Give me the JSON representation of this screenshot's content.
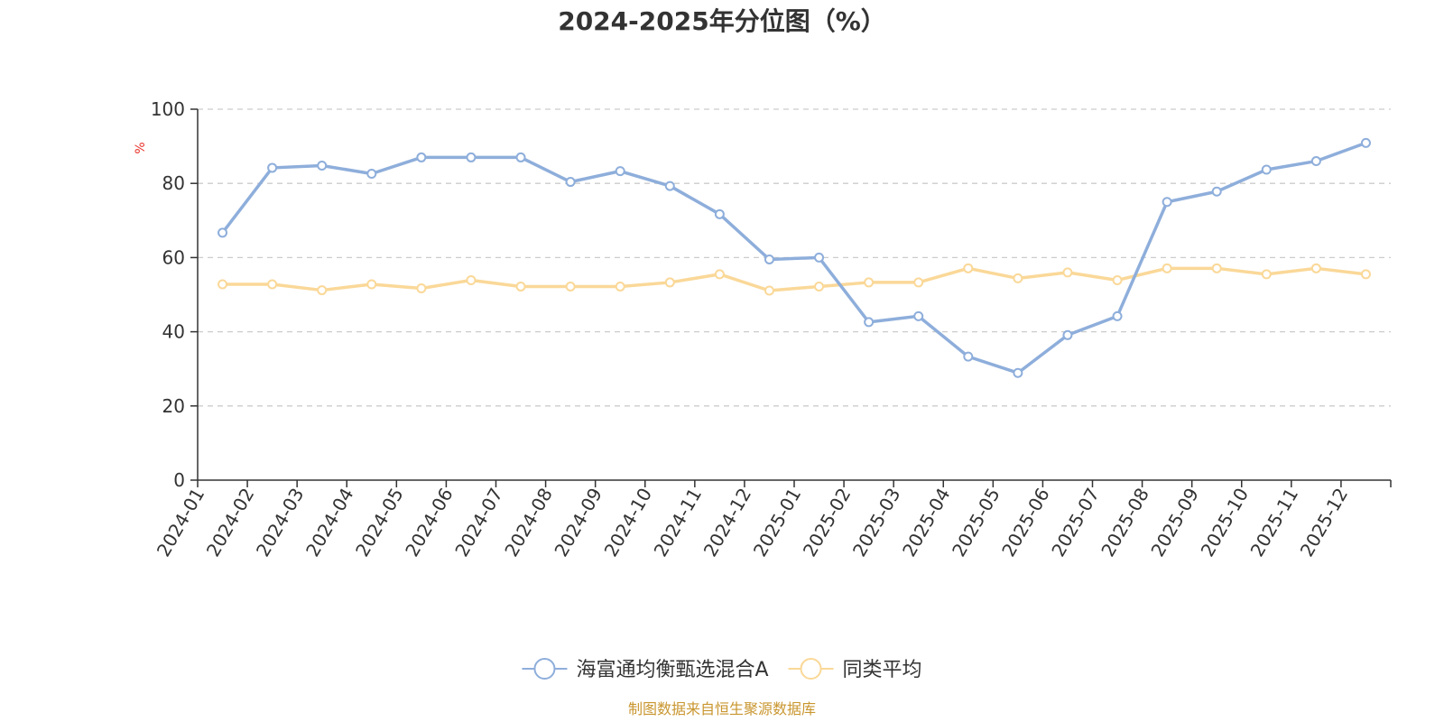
{
  "chart_data": {
    "type": "line",
    "title": "2024-2025年分位图（%）",
    "ylabel": "%",
    "xlabel": "",
    "ylim": [
      0,
      100
    ],
    "yticks": [
      0,
      20,
      40,
      60,
      80,
      100
    ],
    "grid": true,
    "legend_position": "bottom-center",
    "categories": [
      "2024-01",
      "2024-02",
      "2024-03",
      "2024-04",
      "2024-05",
      "2024-06",
      "2024-07",
      "2024-08",
      "2024-09",
      "2024-10",
      "2024-11",
      "2024-12",
      "2025-01",
      "2025-02",
      "2025-03",
      "2025-04",
      "2025-05",
      "2025-06",
      "2025-07",
      "2025-08",
      "2025-09",
      "2025-10",
      "2025-11",
      "2025-12"
    ],
    "series": [
      {
        "name": "海富通均衡甄选混合A",
        "color": "#8eaedb",
        "values": [
          66.7,
          84.2,
          84.8,
          82.6,
          87.0,
          87.0,
          87.0,
          80.4,
          83.3,
          79.3,
          71.7,
          59.5,
          60.0,
          42.6,
          44.2,
          33.3,
          28.9,
          39.1,
          44.2,
          75.0,
          77.8,
          83.7,
          86.0,
          90.9
        ]
      },
      {
        "name": "同类平均",
        "color": "#fad898",
        "values": [
          52.8,
          52.8,
          51.2,
          52.8,
          51.7,
          53.9,
          52.2,
          52.2,
          52.2,
          53.3,
          55.5,
          51.1,
          52.2,
          53.3,
          53.3,
          57.1,
          54.4,
          56.0,
          53.9,
          57.1,
          57.1,
          55.5,
          57.1,
          55.5
        ]
      }
    ],
    "source": "制图数据来自恒生聚源数据库",
    "colors": {
      "axis": "#333333",
      "grid": "#cccccc",
      "unit": "#e8312a",
      "source": "#c9962f"
    }
  }
}
